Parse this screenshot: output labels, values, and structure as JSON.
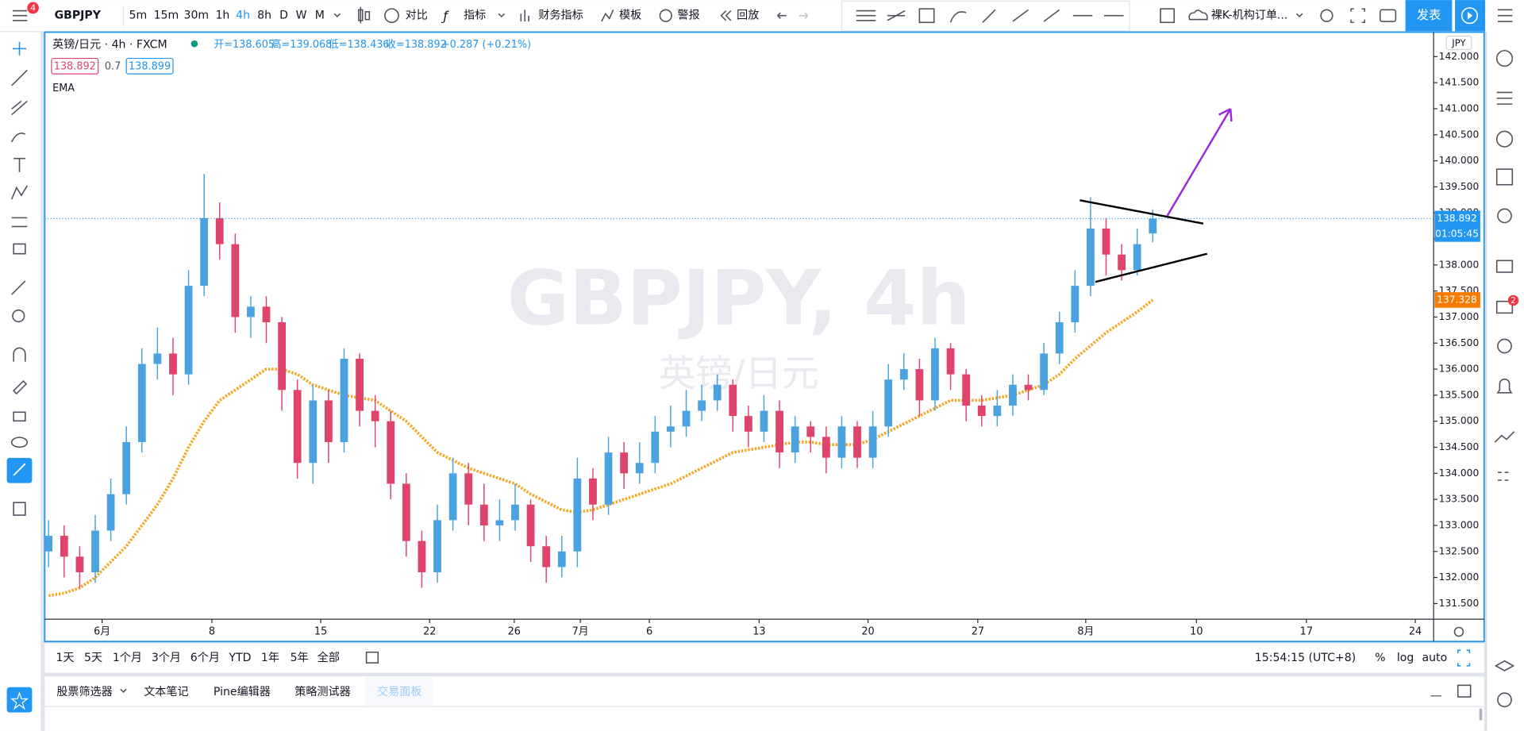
{
  "toolbar": {
    "symbol": "GBPJPY",
    "menu_badge": "4",
    "intervals": [
      "5m",
      "15m",
      "30m",
      "1h",
      "4h",
      "8h",
      "D",
      "W",
      "M"
    ],
    "buttons": [
      "对比",
      "指标",
      "财务指标",
      "模板",
      "警报",
      "回放"
    ],
    "layout_name": "裸K-机构订单...",
    "publish": "发表"
  },
  "chart_data": {
    "type": "candlestick",
    "watermark": "GBPJPY, 4h",
    "watermark_sub": "英镑/日元",
    "legend": {
      "title": "英镑/日元 · 4h · FXCM",
      "ohlc": [
        "开=138.605",
        "高=139.068",
        "低=138.436",
        "收=138.892"
      ],
      "change": "+0.287 (+0.21%)",
      "bid": "138.892",
      "spread": "0.7",
      "ask": "138.899"
    },
    "currency": "JPY",
    "up_color": "#4aa3df",
    "down_color": "#e0436b",
    "x": [
      0,
      1,
      2,
      3,
      4,
      5,
      6,
      7,
      8,
      9,
      10,
      11,
      12,
      13,
      14,
      15,
      16,
      17,
      18,
      19,
      20,
      21,
      22,
      23,
      24,
      25,
      26,
      27,
      28,
      29,
      30,
      31,
      32,
      33,
      34,
      35,
      36,
      37,
      38,
      39,
      40,
      41,
      42,
      43,
      44,
      45,
      46,
      47,
      48,
      49,
      50,
      51,
      52,
      53,
      54,
      55,
      56,
      57,
      58,
      59,
      60,
      61,
      62,
      63,
      64,
      65,
      66,
      67,
      68,
      69,
      70,
      71
    ],
    "open": [
      132.5,
      132.8,
      132.4,
      132.1,
      132.9,
      133.6,
      134.6,
      136.1,
      136.3,
      135.9,
      137.6,
      138.9,
      138.4,
      137.0,
      137.2,
      136.9,
      135.6,
      134.2,
      135.4,
      134.6,
      136.2,
      135.2,
      135.0,
      133.8,
      132.7,
      132.1,
      133.1,
      134.0,
      133.4,
      133.0,
      133.1,
      133.4,
      132.6,
      132.2,
      132.5,
      133.9,
      133.4,
      134.4,
      134.0,
      134.2,
      134.8,
      134.9,
      135.2,
      135.4,
      135.7,
      135.1,
      134.8,
      135.2,
      134.4,
      134.9,
      134.7,
      134.3,
      134.9,
      134.3,
      134.9,
      135.8,
      136.0,
      135.4,
      136.4,
      135.9,
      135.3,
      135.1,
      135.3,
      135.7,
      135.6,
      136.3,
      136.9,
      137.6,
      138.7,
      138.2,
      137.9,
      138.605
    ],
    "high": [
      133.1,
      133.0,
      132.6,
      133.2,
      133.9,
      134.9,
      136.4,
      136.8,
      136.6,
      137.9,
      139.75,
      139.2,
      138.6,
      137.4,
      137.4,
      137.0,
      135.8,
      135.7,
      135.6,
      136.4,
      136.3,
      135.5,
      135.2,
      134.0,
      132.9,
      133.4,
      134.3,
      134.2,
      133.8,
      133.5,
      133.8,
      133.5,
      132.8,
      132.8,
      134.3,
      134.1,
      134.7,
      134.6,
      134.6,
      135.1,
      135.3,
      135.6,
      135.7,
      135.9,
      135.8,
      135.3,
      135.5,
      135.4,
      135.1,
      135.0,
      134.9,
      135.1,
      135.0,
      135.2,
      136.1,
      136.3,
      136.2,
      136.6,
      136.5,
      136.0,
      135.5,
      135.6,
      135.9,
      135.9,
      136.5,
      137.1,
      137.9,
      139.3,
      138.9,
      138.4,
      138.7,
      139.068
    ],
    "low": [
      132.2,
      132.0,
      131.8,
      131.9,
      132.7,
      133.4,
      134.4,
      135.8,
      135.5,
      135.7,
      137.4,
      138.1,
      136.7,
      136.6,
      136.5,
      135.2,
      133.9,
      133.8,
      134.2,
      134.4,
      134.9,
      134.5,
      133.5,
      132.4,
      131.8,
      131.9,
      132.9,
      133.0,
      132.7,
      132.7,
      132.9,
      132.3,
      131.9,
      132.0,
      132.2,
      133.1,
      133.2,
      133.7,
      133.8,
      134.0,
      134.5,
      134.7,
      135.0,
      135.2,
      134.8,
      134.5,
      134.6,
      134.1,
      134.2,
      134.4,
      134.0,
      134.1,
      134.1,
      134.1,
      134.7,
      135.6,
      135.1,
      135.2,
      135.6,
      135.0,
      134.9,
      134.9,
      135.1,
      135.4,
      135.5,
      136.1,
      136.7,
      137.4,
      137.8,
      137.7,
      137.8,
      138.436
    ],
    "close": [
      132.8,
      132.4,
      132.1,
      132.9,
      133.6,
      134.6,
      136.1,
      136.3,
      135.9,
      137.6,
      138.9,
      138.4,
      137.0,
      137.2,
      136.9,
      135.6,
      134.2,
      135.4,
      134.6,
      136.2,
      135.2,
      135.0,
      133.8,
      132.7,
      132.1,
      133.1,
      134.0,
      133.4,
      133.0,
      133.1,
      133.4,
      132.6,
      132.2,
      132.5,
      133.9,
      133.4,
      134.4,
      134.0,
      134.2,
      134.8,
      134.9,
      135.2,
      135.4,
      135.7,
      135.1,
      134.8,
      135.2,
      134.4,
      134.9,
      134.7,
      134.3,
      134.9,
      134.3,
      134.9,
      135.8,
      136.0,
      135.4,
      136.4,
      135.9,
      135.3,
      135.1,
      135.3,
      135.7,
      135.6,
      136.3,
      136.9,
      137.6,
      138.7,
      138.2,
      137.9,
      138.4,
      138.892
    ],
    "ema": {
      "name": "EMA",
      "color": "#f5a623",
      "values": [
        131.65,
        131.7,
        131.8,
        132.0,
        132.3,
        132.6,
        133.0,
        133.4,
        133.9,
        134.5,
        135.0,
        135.4,
        135.6,
        135.8,
        136.0,
        136.0,
        135.9,
        135.7,
        135.6,
        135.5,
        135.45,
        135.4,
        135.2,
        135.0,
        134.7,
        134.4,
        134.25,
        134.1,
        134.0,
        133.9,
        133.8,
        133.6,
        133.45,
        133.3,
        133.25,
        133.3,
        133.4,
        133.5,
        133.6,
        133.7,
        133.8,
        133.95,
        134.1,
        134.25,
        134.4,
        134.45,
        134.5,
        134.55,
        134.6,
        134.6,
        134.55,
        134.55,
        134.55,
        134.65,
        134.8,
        134.95,
        135.1,
        135.25,
        135.4,
        135.4,
        135.4,
        135.45,
        135.5,
        135.6,
        135.7,
        135.9,
        136.2,
        136.45,
        136.7,
        136.9,
        137.1,
        137.328
      ]
    },
    "last_price": {
      "value": 138.892,
      "label": "138.892",
      "color": "#2196f3"
    },
    "countdown": "01:05:45",
    "ema_price": {
      "value": 137.328,
      "label": "137.328",
      "color": "#f57c00"
    },
    "ylim": [
      131.2,
      142.47
    ],
    "yticks": [
      {
        "value": 131.5,
        "label": "131.500"
      },
      {
        "value": 132,
        "label": "132.000"
      },
      {
        "value": 132.5,
        "label": "132.500"
      },
      {
        "value": 133,
        "label": "133.000"
      },
      {
        "value": 133.5,
        "label": "133.500"
      },
      {
        "value": 134,
        "label": "134.000"
      },
      {
        "value": 134.5,
        "label": "134.500"
      },
      {
        "value": 135,
        "label": "135.000"
      },
      {
        "value": 135.5,
        "label": "135.500"
      },
      {
        "value": 136,
        "label": "136.000"
      },
      {
        "value": 136.5,
        "label": "136.500"
      },
      {
        "value": 137,
        "label": "137.000"
      },
      {
        "value": 137.5,
        "label": "137.500"
      },
      {
        "value": 138,
        "label": "138.000"
      },
      {
        "value": 138.5,
        "label": "138.500"
      },
      {
        "value": 139,
        "label": "139.000"
      },
      {
        "value": 139.5,
        "label": "139.500"
      },
      {
        "value": 140,
        "label": "140.000"
      },
      {
        "value": 140.5,
        "label": "140.500"
      },
      {
        "value": 141,
        "label": "141.000"
      },
      {
        "value": 141.5,
        "label": "141.500"
      },
      {
        "value": 142,
        "label": "142.000"
      }
    ],
    "xlim": [
      -0.25,
      89.06
    ],
    "xticks": [
      {
        "value": 3.44,
        "label": "6月"
      },
      {
        "value": 10.5,
        "label": "8"
      },
      {
        "value": 17.5,
        "label": "15"
      },
      {
        "value": 24.5,
        "label": "22"
      },
      {
        "value": 29.94,
        "label": "26"
      },
      {
        "value": 34.19,
        "label": "7月"
      },
      {
        "value": 38.63,
        "label": "6"
      },
      {
        "value": 45.69,
        "label": "13"
      },
      {
        "value": 52.69,
        "label": "20"
      },
      {
        "value": 59.75,
        "label": "27"
      },
      {
        "value": 66.69,
        "label": "8月"
      },
      {
        "value": 73.81,
        "label": "10"
      },
      {
        "value": 80.88,
        "label": "17"
      },
      {
        "value": 87.88,
        "label": "24"
      }
    ],
    "grid": false
  },
  "range_bar": {
    "ranges": [
      "1天",
      "5天",
      "1个月",
      "3个月",
      "6个月",
      "YTD",
      "1年",
      "5年",
      "全部"
    ],
    "clock": "15:54:15 (UTC+8)",
    "scale_options": [
      "%",
      "log",
      "auto"
    ]
  },
  "bottom_tabs": [
    "股票筛选器",
    "文本笔记",
    "Pine编辑器",
    "策略测试器",
    "交易面板"
  ],
  "sidebar_badge": "2"
}
